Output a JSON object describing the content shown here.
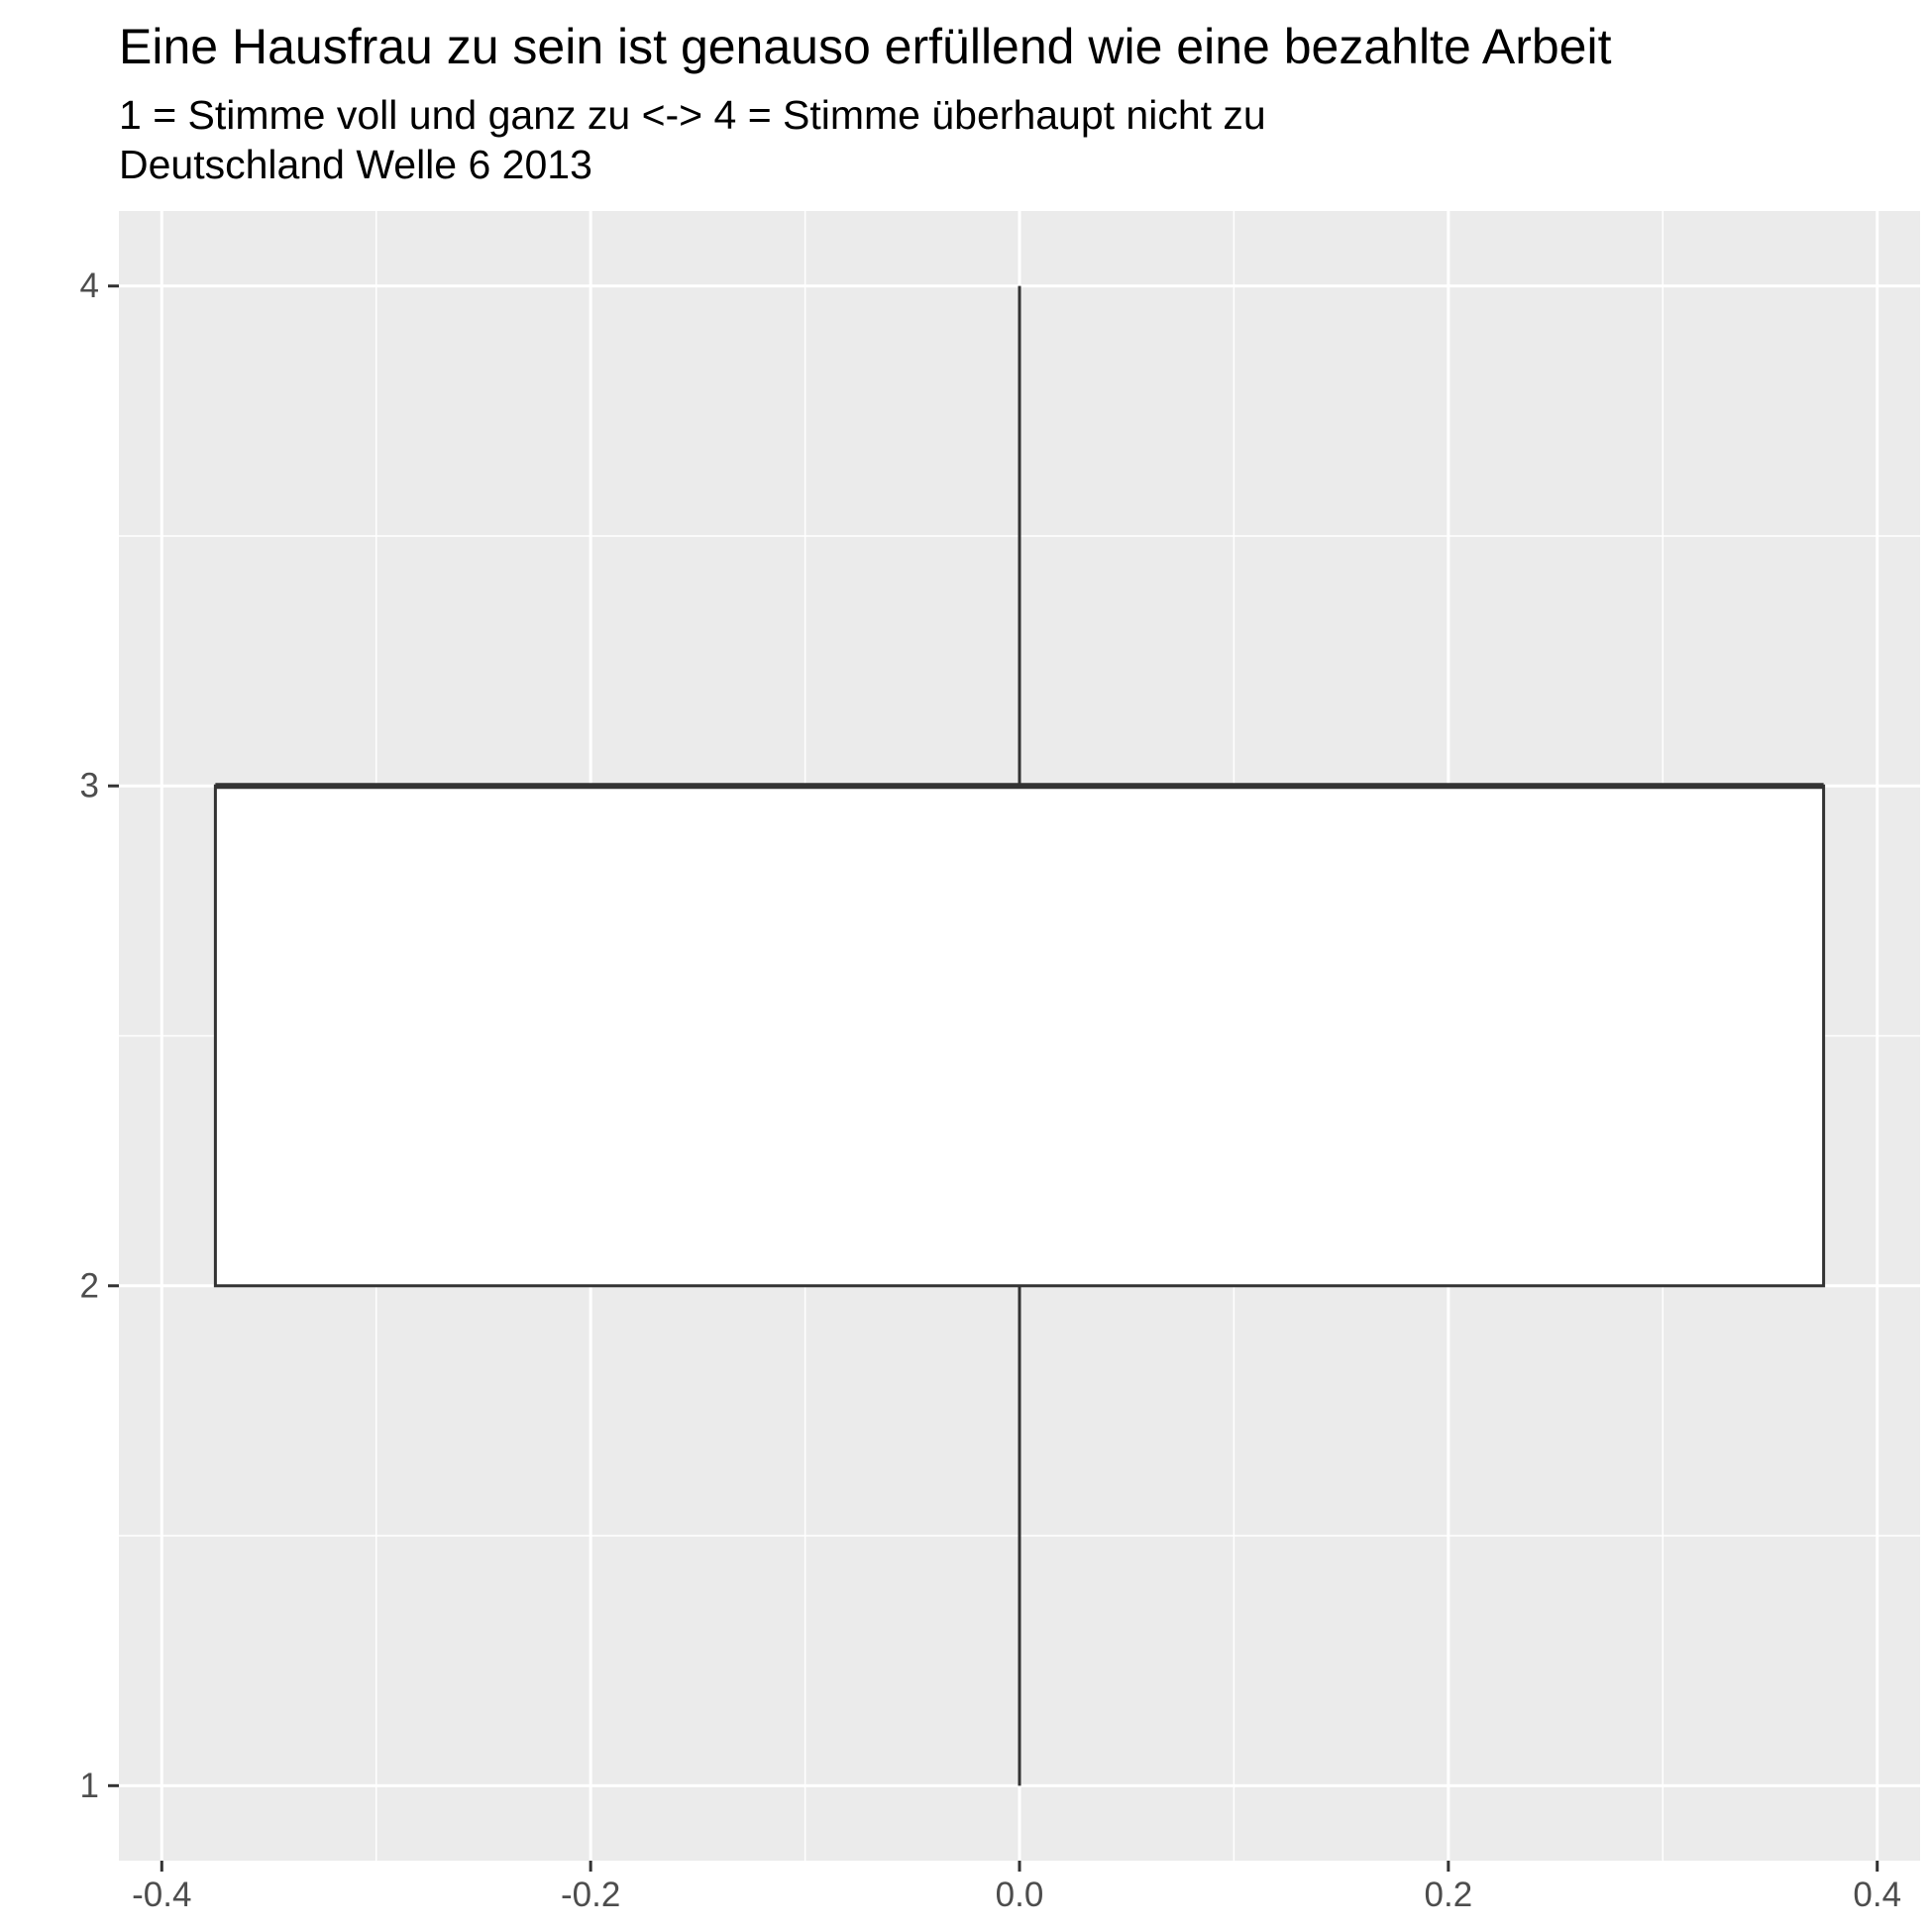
{
  "colors": {
    "panel_background": "#ebebeb",
    "grid": "#ffffff",
    "box_fill": "#ffffff",
    "box_stroke": "#333333",
    "tick_text": "#4d4d4d"
  },
  "chart_data": {
    "type": "boxplot",
    "title": "Eine Hausfrau zu sein ist genauso erfüllend wie eine bezahlte Arbeit",
    "subtitle_lines": [
      "1 = Stimme voll und ganz zu <-> 4 = Stimme überhaupt nicht zu",
      "Deutschland Welle 6 2013"
    ],
    "xlabel": "",
    "ylabel": "",
    "xlim": [
      -0.42,
      0.42
    ],
    "ylim": [
      0.85,
      4.15
    ],
    "x_ticks": [
      -0.4,
      -0.2,
      0.0,
      0.2,
      0.4
    ],
    "x_tick_labels": [
      "-0.4",
      "-0.2",
      "0.0",
      "0.2",
      "0.4"
    ],
    "y_ticks": [
      1,
      2,
      3,
      4
    ],
    "y_tick_labels": [
      "1",
      "2",
      "3",
      "4"
    ],
    "grid": true,
    "box": {
      "x_center": 0.0,
      "x_left": -0.375,
      "x_right": 0.375,
      "whisker_low": 1,
      "q1": 2,
      "median": 3,
      "q3": 3,
      "whisker_high": 4
    }
  }
}
